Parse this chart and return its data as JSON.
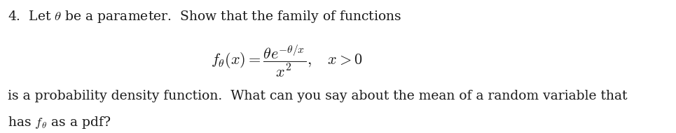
{
  "background_color": "#ffffff",
  "text_color": "#1a1a1a",
  "line1": "4.  Let $\\theta$ be a parameter.  Show that the family of functions",
  "formula": "$f_\\theta(x) = \\dfrac{\\theta e^{-\\theta/x}}{x^2}, \\quad x > 0$",
  "line3": "is a probability density function.  What can you say about the mean of a random variable that",
  "line4": "has $f_\\theta$ as a pdf?",
  "fig_width": 9.65,
  "fig_height": 1.91,
  "dpi": 100
}
